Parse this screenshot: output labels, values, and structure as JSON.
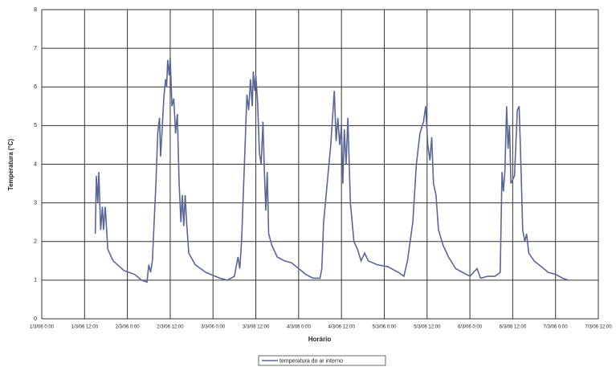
{
  "chart_data": {
    "type": "line",
    "ylabel": "Temperatura (°C)",
    "xlabel": "Horário",
    "xlim": [
      0,
      156
    ],
    "xticks": [
      {
        "value": 0,
        "label": "1/3/06 0:00"
      },
      {
        "value": 12,
        "label": "1/3/06 12:00"
      },
      {
        "value": 24,
        "label": "2/3/06 0:00"
      },
      {
        "value": 36,
        "label": "2/3/06 12:00"
      },
      {
        "value": 48,
        "label": "3/3/06 0:00"
      },
      {
        "value": 60,
        "label": "3/3/06 12:00"
      },
      {
        "value": 72,
        "label": "4/3/06 0:00"
      },
      {
        "value": 84,
        "label": "4/3/06 12:00"
      },
      {
        "value": 96,
        "label": "5/3/06 0:00"
      },
      {
        "value": 108,
        "label": "5/3/06 12:00"
      },
      {
        "value": 120,
        "label": "6/3/06 0:00"
      },
      {
        "value": 132,
        "label": "6/3/06 12:00"
      },
      {
        "value": 144,
        "label": "7/3/06 0:00"
      },
      {
        "value": 156,
        "label": "7/3/06 12:00"
      }
    ],
    "ylim": [
      0,
      8
    ],
    "yticks": [
      0,
      1,
      2,
      3,
      4,
      5,
      6,
      7,
      8
    ],
    "grid": true,
    "legend": "bottom",
    "x": [
      15,
      15.3,
      15.7,
      16,
      16.5,
      17,
      17.3,
      17.8,
      18.5,
      20,
      23,
      26,
      28,
      29.5,
      30,
      30.5,
      31,
      32,
      32.5,
      33,
      33.3,
      33.8,
      34.2,
      34.7,
      35,
      35.3,
      35.7,
      36,
      36.5,
      37,
      37.5,
      38,
      38.5,
      39,
      39.4,
      39.8,
      40.2,
      40.6,
      41.2,
      43,
      46,
      50,
      52,
      54,
      55,
      55.5,
      56,
      57,
      57.5,
      58,
      58.5,
      59,
      59.3,
      59.7,
      60,
      60.5,
      61,
      61.5,
      62,
      62.4,
      62.8,
      63.2,
      63.6,
      64.5,
      66,
      68,
      70,
      72,
      74,
      76,
      78,
      78.5,
      79,
      80,
      81,
      82,
      82.5,
      83,
      83.5,
      84,
      84.4,
      84.8,
      85.3,
      85.8,
      86.5,
      87.5,
      88.5,
      89.5,
      90.5,
      91.5,
      94,
      97,
      100,
      101.5,
      102.5,
      104,
      105,
      106,
      107,
      107.6,
      108.2,
      108.8,
      109.3,
      109.8,
      110.5,
      111.2,
      112.5,
      114,
      116,
      118,
      120,
      122,
      123,
      125,
      127,
      128.5,
      129,
      129.4,
      129.8,
      130.3,
      130.7,
      131.1,
      131.5,
      132.5,
      133.3,
      133.8,
      134.3,
      134.8,
      135.4,
      135.9,
      136.5,
      138,
      140,
      142,
      144,
      146,
      147.6
    ],
    "series": [
      {
        "name": "temperatura do ar interno",
        "color": "#5a6796",
        "values": [
          2.2,
          3.7,
          3.0,
          3.8,
          2.3,
          2.9,
          2.3,
          2.9,
          1.8,
          1.5,
          1.25,
          1.15,
          1.0,
          0.95,
          1.4,
          1.2,
          1.5,
          3.5,
          4.8,
          5.2,
          4.2,
          5.0,
          5.7,
          6.2,
          6.0,
          6.7,
          6.3,
          6.75,
          5.5,
          5.7,
          4.8,
          5.3,
          3.5,
          2.5,
          3.2,
          2.4,
          3.2,
          2.5,
          1.7,
          1.4,
          1.2,
          1.05,
          1.0,
          1.1,
          1.6,
          1.3,
          2.0,
          4.5,
          5.8,
          5.4,
          6.2,
          5.5,
          6.4,
          5.9,
          6.3,
          5.6,
          4.3,
          4.0,
          5.1,
          3.8,
          2.8,
          3.8,
          2.2,
          1.9,
          1.6,
          1.5,
          1.45,
          1.3,
          1.15,
          1.05,
          1.05,
          1.3,
          2.5,
          3.5,
          4.5,
          5.9,
          4.6,
          5.2,
          4.5,
          5.0,
          3.5,
          4.9,
          4.0,
          5.2,
          3.0,
          2.0,
          1.8,
          1.5,
          1.7,
          1.5,
          1.4,
          1.35,
          1.2,
          1.1,
          1.5,
          2.5,
          4.0,
          4.8,
          5.1,
          5.5,
          4.5,
          4.1,
          4.7,
          3.5,
          3.2,
          2.3,
          1.9,
          1.6,
          1.3,
          1.2,
          1.1,
          1.3,
          1.05,
          1.1,
          1.1,
          1.2,
          3.8,
          3.3,
          3.8,
          5.5,
          4.4,
          5.0,
          3.5,
          3.7,
          5.4,
          5.5,
          4.0,
          2.3,
          2.0,
          2.2,
          1.7,
          1.5,
          1.35,
          1.2,
          1.15,
          1.05,
          1.0
        ]
      }
    ]
  }
}
